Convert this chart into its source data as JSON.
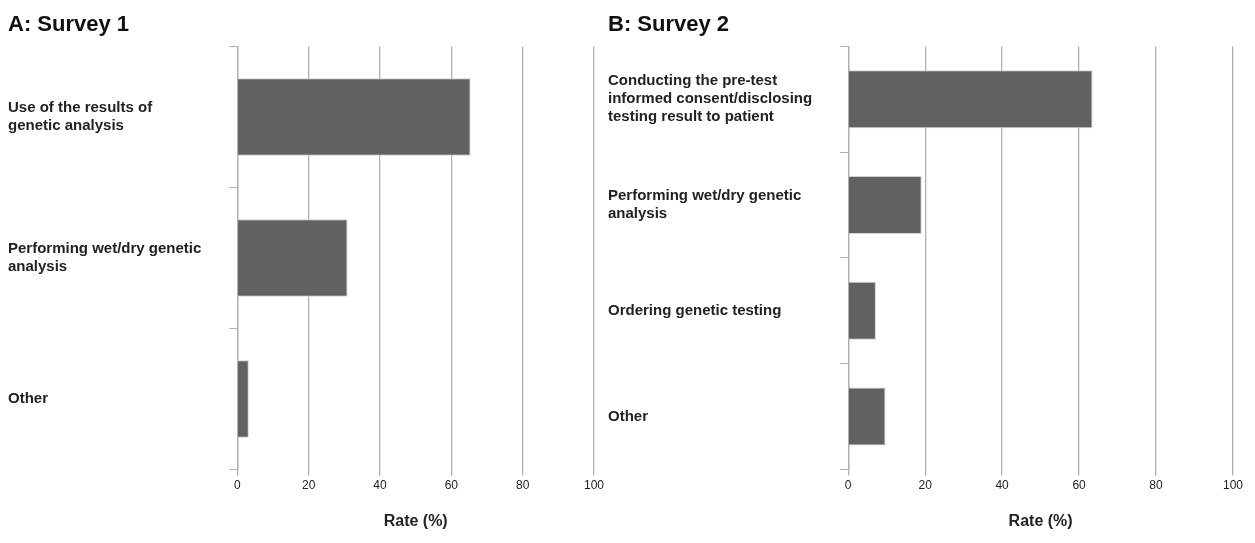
{
  "chart_data": [
    {
      "type": "bar",
      "title": "A: Survey 1",
      "xlabel": "Rate (%)",
      "orientation": "horizontal",
      "categories": [
        "Use of the results of genetic analysis",
        "Performing wet/dry genetic analysis",
        "Other"
      ],
      "values": [
        65.4,
        30.9,
        3.2
      ],
      "color": "#616161",
      "xlim": [
        0,
        100
      ],
      "xticks": [
        0,
        20,
        40,
        60,
        80,
        100
      ],
      "grid": "x",
      "legend": false
    },
    {
      "type": "bar",
      "title": "B: Survey 2",
      "xlabel": "Rate (%)",
      "orientation": "horizontal",
      "categories": [
        "Conducting the pre-test informed consent/disclosing testing result to patient",
        "Performing wet/dry genetic analysis",
        "Ordering genetic testing",
        "Other"
      ],
      "values": [
        63.5,
        19.1,
        7.2,
        9.7
      ],
      "color": "#616161",
      "xlim": [
        0,
        100
      ],
      "xticks": [
        0,
        20,
        40,
        60,
        80,
        100
      ],
      "grid": "x",
      "legend": false
    }
  ]
}
